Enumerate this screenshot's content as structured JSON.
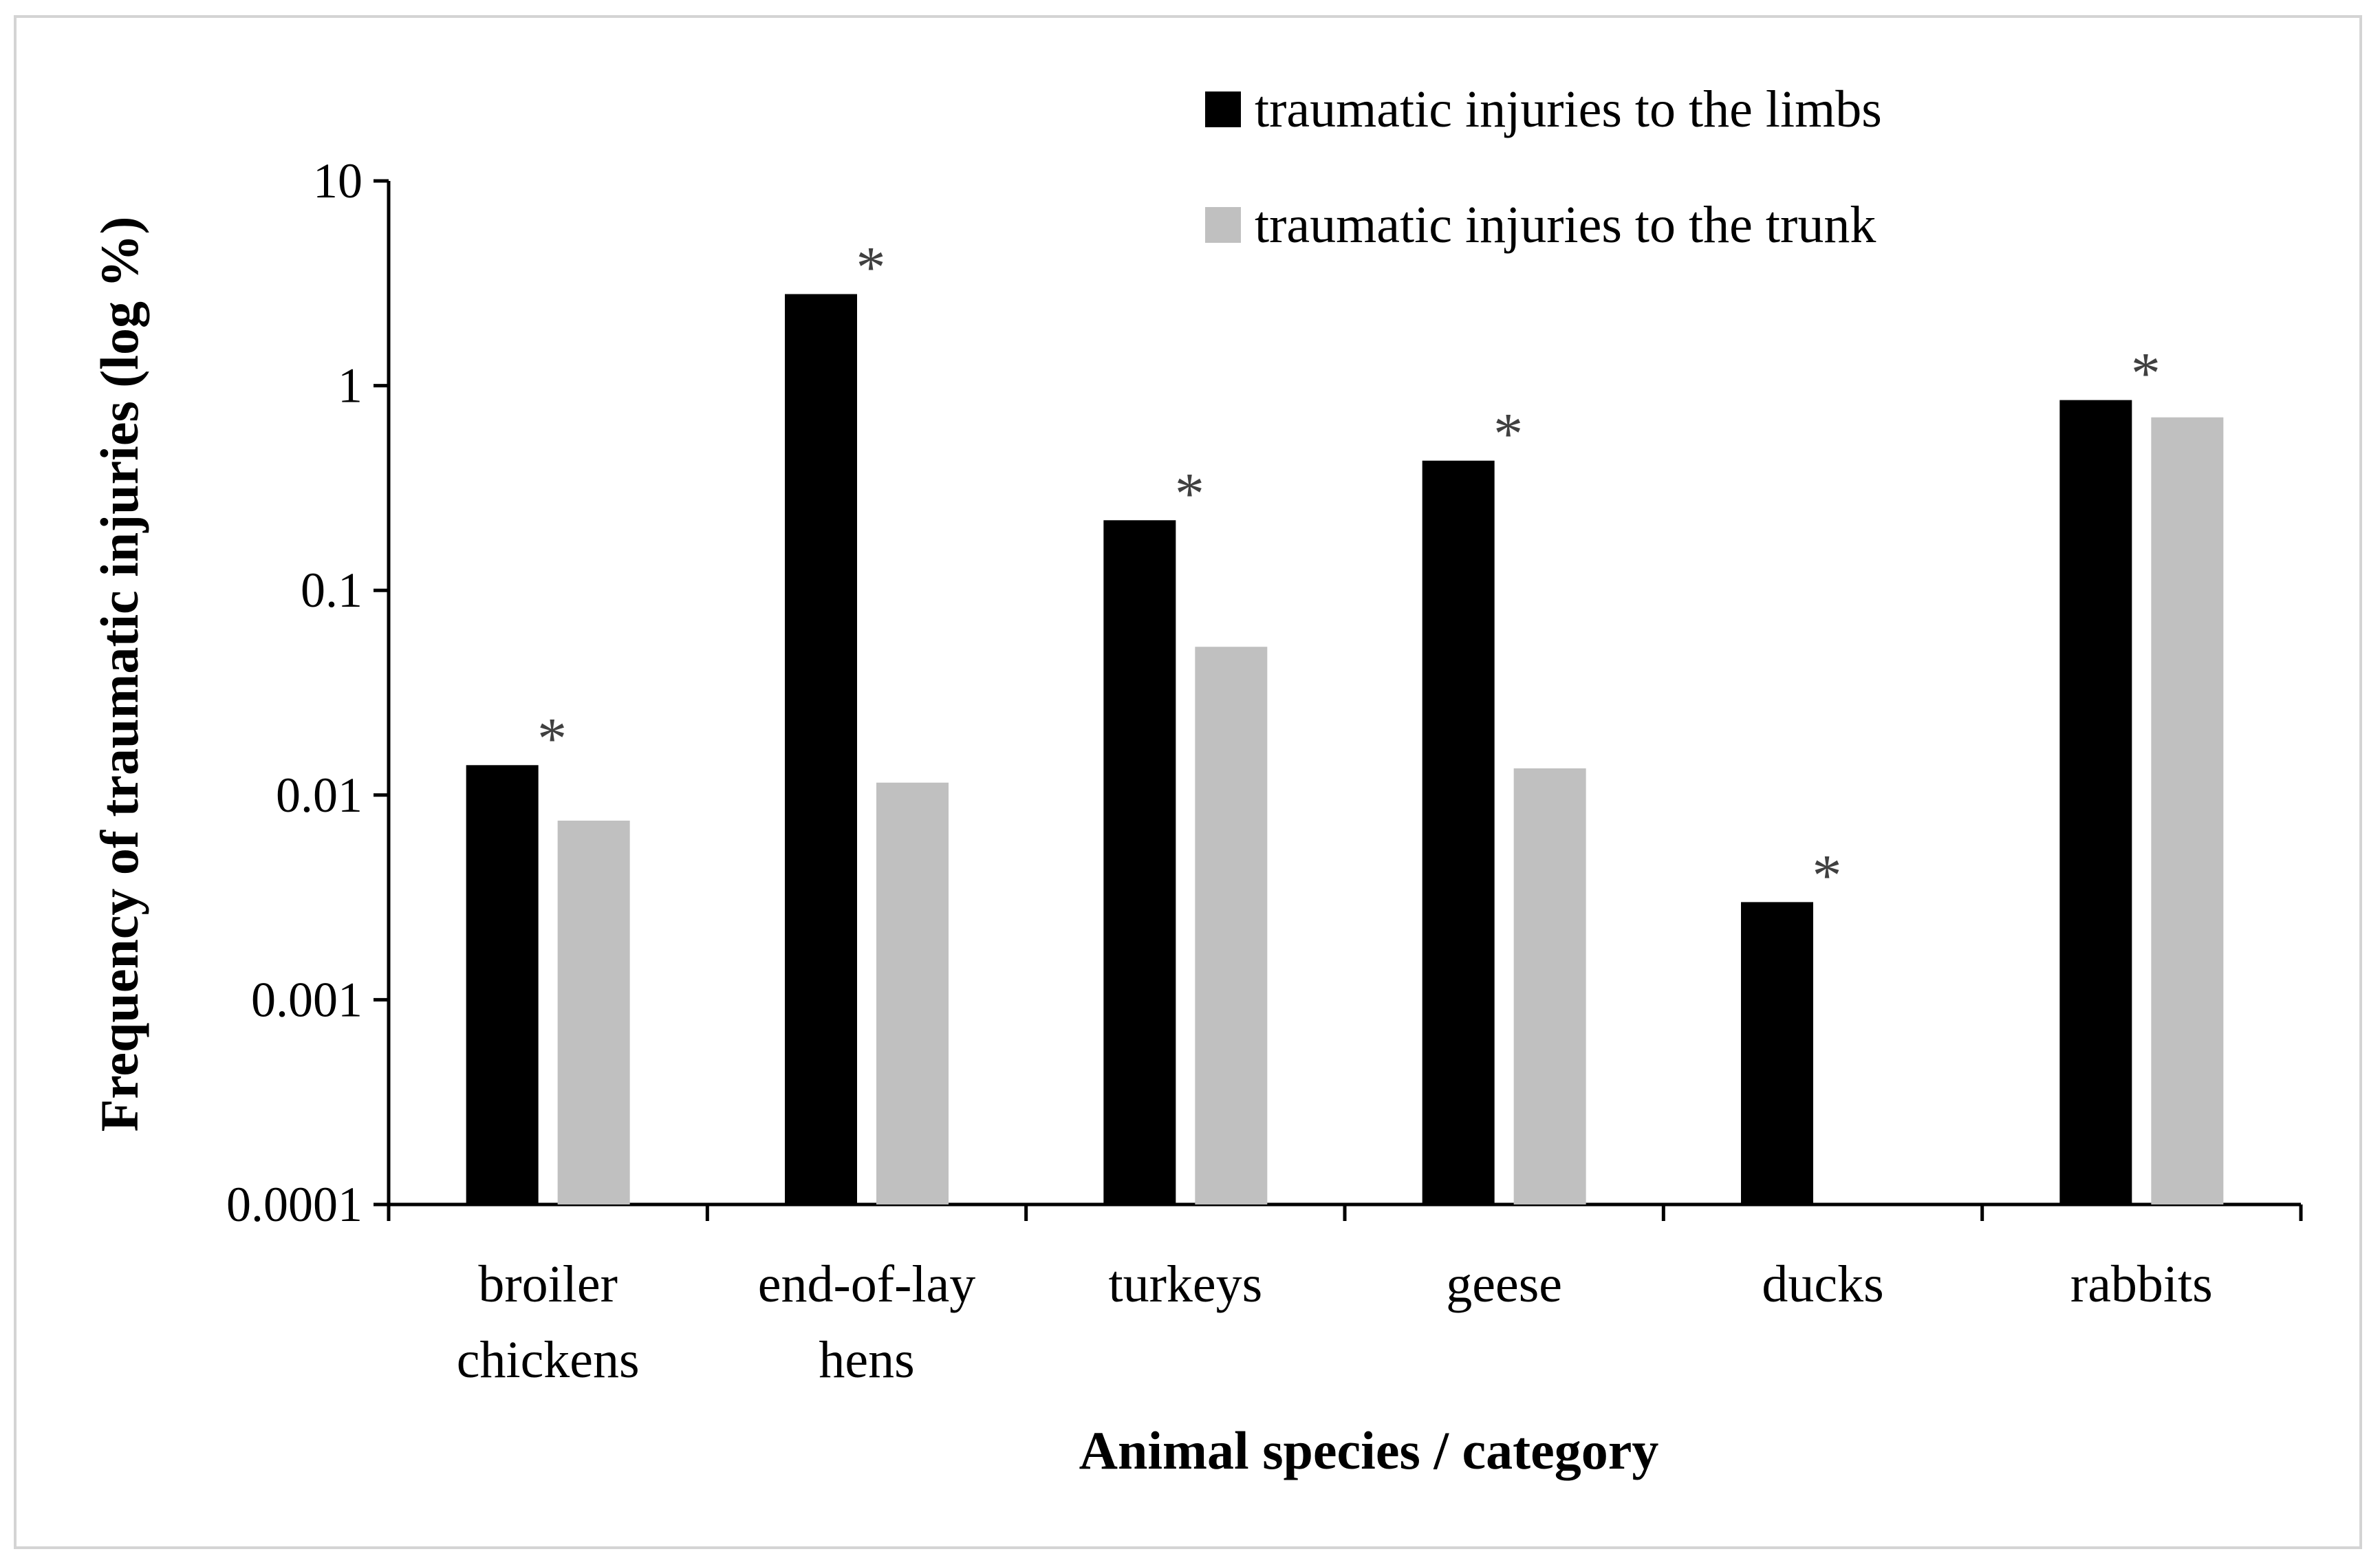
{
  "chart_data": {
    "type": "bar",
    "scale": "log",
    "xlabel": "Animal species / category",
    "ylabel": "Frequency of traumatic injuries (log %)",
    "ylim": [
      0.0001,
      10
    ],
    "y_ticks": [
      "0.0001",
      "0.001",
      "0.01",
      "0.1",
      "1",
      "10"
    ],
    "y_tick_values": [
      0.0001,
      0.001,
      0.01,
      0.1,
      1,
      10
    ],
    "categories": [
      [
        "broiler",
        "chickens"
      ],
      [
        "end-of-lay",
        "hens"
      ],
      [
        "turkeys"
      ],
      [
        "geese"
      ],
      [
        "ducks"
      ],
      [
        "rabbits"
      ]
    ],
    "series": [
      {
        "name": "traumatic injuries to the limbs",
        "color": "#000000",
        "values": [
          0.014,
          2.8,
          0.22,
          0.43,
          0.003,
          0.85
        ]
      },
      {
        "name": "traumatic injuries to the trunk",
        "color": "#c0c0c0",
        "values": [
          0.0075,
          0.0115,
          0.053,
          0.0135,
          null,
          0.7
        ]
      }
    ],
    "significance_marker": "*",
    "significant": [
      true,
      true,
      true,
      true,
      true,
      true
    ],
    "legend_position": "top-right",
    "grid": false
  }
}
